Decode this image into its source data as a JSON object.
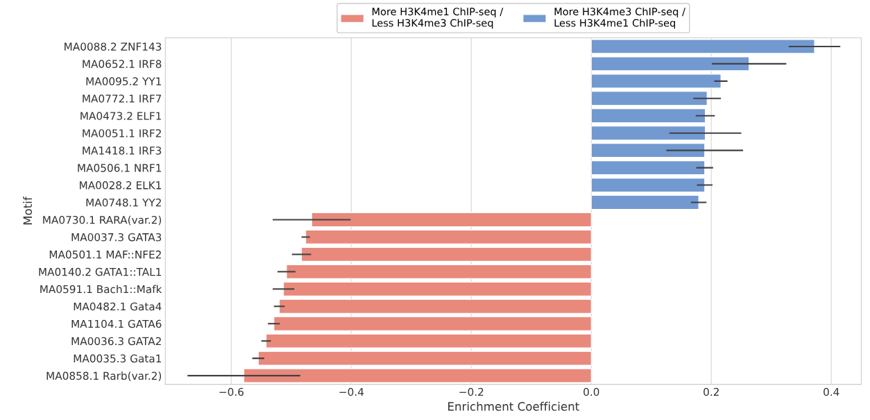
{
  "chart_data": {
    "type": "bar",
    "orientation": "horizontal",
    "xlabel": "Enrichment Coefficient",
    "ylabel": "Motif",
    "categories": [
      "MA0088.2 ZNF143",
      "MA0652.1 IRF8",
      "MA0095.2 YY1",
      "MA0772.1 IRF7",
      "MA0473.2 ELF1",
      "MA0051.1 IRF2",
      "MA1418.1 IRF3",
      "MA0506.1 NRF1",
      "MA0028.2 ELK1",
      "MA0748.1 YY2",
      "MA0730.1 RARA(var.2)",
      "MA0037.3 GATA3",
      "MA0501.1 MAF::NFE2",
      "MA0140.2 GATA1::TAL1",
      "MA0591.1 Bach1::Mafk",
      "MA0482.1 Gata4",
      "MA1104.1 GATA6",
      "MA0036.3 GATA2",
      "MA0035.3 Gata1",
      "MA0858.1 Rarb(var.2)"
    ],
    "series": [
      {
        "name": "More H3K4me1 ChIP-seq /\nLess H3K4me3 ChIP-seq",
        "color": "#e8897c",
        "values": [
          null,
          null,
          null,
          null,
          null,
          null,
          null,
          null,
          null,
          null,
          -0.466,
          -0.476,
          -0.483,
          -0.508,
          -0.513,
          -0.52,
          -0.529,
          -0.542,
          -0.555,
          -0.579
        ],
        "errors": [
          null,
          null,
          null,
          null,
          null,
          null,
          null,
          null,
          null,
          null,
          0.065,
          0.007,
          0.016,
          0.015,
          0.018,
          0.009,
          0.01,
          0.008,
          0.01,
          0.094
        ]
      },
      {
        "name": "More H3K4me3 ChIP-seq /\nLess H3K4me1 ChIP-seq",
        "color": "#7399d1",
        "values": [
          0.372,
          0.263,
          0.216,
          0.193,
          0.19,
          0.19,
          0.189,
          0.189,
          0.189,
          0.179,
          null,
          null,
          null,
          null,
          null,
          null,
          null,
          null,
          null,
          null
        ],
        "errors": [
          0.043,
          0.062,
          0.011,
          0.023,
          0.016,
          0.06,
          0.064,
          0.014,
          0.013,
          0.013,
          null,
          null,
          null,
          null,
          null,
          null,
          null,
          null,
          null,
          null
        ]
      }
    ],
    "xlim": [
      -0.71,
      0.45
    ],
    "xticks": [
      {
        "value": -0.6,
        "label": "−0.6"
      },
      {
        "value": -0.4,
        "label": "−0.4"
      },
      {
        "value": -0.2,
        "label": "−0.2"
      },
      {
        "value": 0.0,
        "label": "0.0"
      },
      {
        "value": 0.2,
        "label": "0.2"
      },
      {
        "value": 0.4,
        "label": "0.4"
      }
    ],
    "grid": "x",
    "legend": "top"
  }
}
